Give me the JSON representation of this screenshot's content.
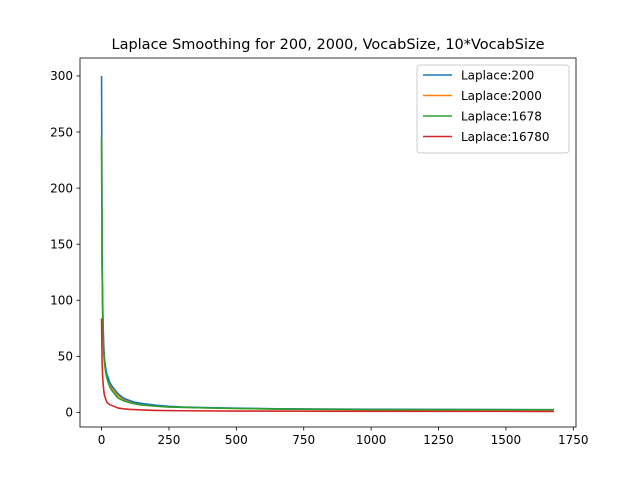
{
  "chart_data": {
    "type": "line",
    "title": "Laplace Smoothing for 200, 2000, VocabSize, 10*VocabSize",
    "xlabel": "",
    "ylabel": "",
    "xlim": [
      -80,
      1760
    ],
    "ylim": [
      -13,
      316
    ],
    "xticks": [
      0,
      250,
      500,
      750,
      1000,
      1250,
      1500,
      1750
    ],
    "yticks": [
      0,
      50,
      100,
      150,
      200,
      250,
      300
    ],
    "grid": false,
    "legend_position": "top-right",
    "series": [
      {
        "name": "Laplace:2000",
        "color": "#ff7f0e",
        "points": [
          [
            0,
            243
          ],
          [
            2,
            130
          ],
          [
            4,
            92
          ],
          [
            6,
            70
          ],
          [
            8,
            56
          ],
          [
            10,
            48
          ],
          [
            15,
            38
          ],
          [
            20,
            32
          ],
          [
            30,
            25
          ],
          [
            40,
            21
          ],
          [
            50,
            18
          ],
          [
            60,
            15
          ],
          [
            80,
            12
          ],
          [
            100,
            10
          ],
          [
            125,
            8
          ],
          [
            150,
            7
          ],
          [
            200,
            6
          ],
          [
            250,
            5
          ],
          [
            300,
            4.5
          ],
          [
            400,
            4
          ],
          [
            500,
            3.5
          ],
          [
            650,
            3
          ],
          [
            1000,
            2.5
          ],
          [
            1678,
            2.3
          ]
        ]
      },
      {
        "name": "Laplace:200",
        "color": "#1f77b4",
        "points": [
          [
            0,
            300
          ],
          [
            2,
            140
          ],
          [
            4,
            100
          ],
          [
            6,
            75
          ],
          [
            8,
            60
          ],
          [
            10,
            50
          ],
          [
            15,
            40
          ],
          [
            20,
            34
          ],
          [
            30,
            27
          ],
          [
            40,
            23
          ],
          [
            50,
            20
          ],
          [
            60,
            17
          ],
          [
            80,
            13
          ],
          [
            100,
            11
          ],
          [
            125,
            9
          ],
          [
            150,
            8
          ],
          [
            200,
            6.5
          ],
          [
            250,
            5.5
          ],
          [
            300,
            4.8
          ],
          [
            400,
            4.2
          ],
          [
            500,
            3.8
          ],
          [
            650,
            3.2
          ],
          [
            1000,
            2.8
          ],
          [
            1678,
            2.5
          ]
        ]
      },
      {
        "name": "Laplace:1678",
        "color": "#2ca02c",
        "points": [
          [
            0,
            245
          ],
          [
            2,
            128
          ],
          [
            4,
            90
          ],
          [
            6,
            68
          ],
          [
            8,
            54
          ],
          [
            10,
            46
          ],
          [
            15,
            36
          ],
          [
            20,
            30
          ],
          [
            30,
            23
          ],
          [
            40,
            19
          ],
          [
            50,
            16
          ],
          [
            60,
            13
          ],
          [
            80,
            10.5
          ],
          [
            100,
            9
          ],
          [
            125,
            7.5
          ],
          [
            150,
            6.5
          ],
          [
            200,
            5.5
          ],
          [
            250,
            4.8
          ],
          [
            300,
            4.5
          ],
          [
            400,
            4
          ],
          [
            500,
            3.5
          ],
          [
            650,
            3
          ],
          [
            1000,
            2.5
          ],
          [
            1678,
            2.3
          ]
        ]
      },
      {
        "name": "Laplace:16780",
        "color": "#d62728",
        "points": [
          [
            0,
            84
          ],
          [
            2,
            45
          ],
          [
            4,
            32
          ],
          [
            6,
            25
          ],
          [
            8,
            20
          ],
          [
            10,
            16
          ],
          [
            15,
            12
          ],
          [
            20,
            9
          ],
          [
            30,
            7
          ],
          [
            40,
            6
          ],
          [
            50,
            5
          ],
          [
            60,
            4
          ],
          [
            80,
            3.2
          ],
          [
            100,
            2.8
          ],
          [
            150,
            2.2
          ],
          [
            200,
            1.8
          ],
          [
            300,
            1.5
          ],
          [
            500,
            1.2
          ],
          [
            1000,
            1
          ],
          [
            1678,
            0.9
          ]
        ]
      }
    ],
    "legend": [
      {
        "name": "Laplace:200",
        "color": "#1f77b4"
      },
      {
        "name": "Laplace:2000",
        "color": "#ff7f0e"
      },
      {
        "name": "Laplace:1678",
        "color": "#2ca02c"
      },
      {
        "name": "Laplace:16780",
        "color": "#d62728"
      }
    ]
  }
}
